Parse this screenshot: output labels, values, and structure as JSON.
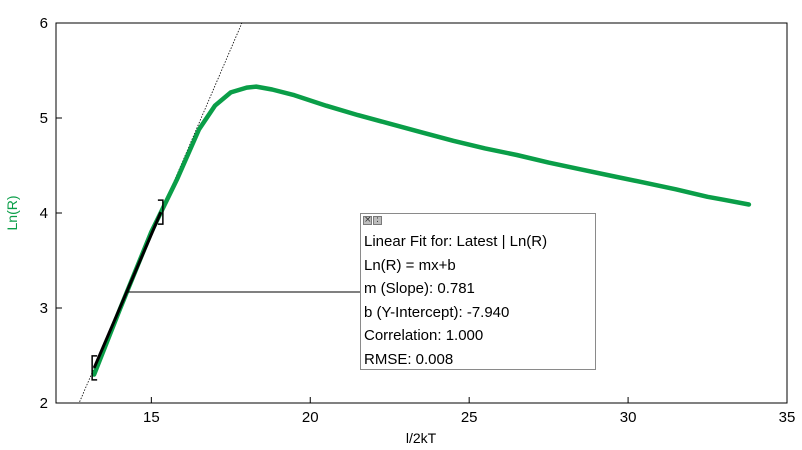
{
  "chart_data": {
    "type": "line",
    "xlabel": "l/2kT",
    "ylabel": "Ln(R)",
    "xlim": [
      12,
      35
    ],
    "ylim": [
      2,
      6
    ],
    "xticks": [
      15,
      20,
      25,
      30,
      35
    ],
    "yticks": [
      2,
      3,
      4,
      5,
      6
    ],
    "grid": false,
    "series": [
      {
        "color": "#0a9e48",
        "x": [
          13.2,
          14.0,
          15.0,
          15.8,
          16.5,
          17.0,
          17.5,
          18.0,
          18.3,
          18.8,
          19.5,
          20.5,
          21.5,
          22.5,
          23.5,
          24.5,
          25.5,
          26.5,
          27.5,
          28.5,
          29.5,
          30.5,
          31.5,
          32.5,
          33.0,
          33.8
        ],
        "y": [
          2.3,
          2.98,
          3.8,
          4.35,
          4.88,
          5.13,
          5.27,
          5.32,
          5.33,
          5.3,
          5.24,
          5.13,
          5.03,
          4.94,
          4.85,
          4.76,
          4.68,
          4.61,
          4.53,
          4.46,
          4.39,
          4.32,
          4.25,
          4.17,
          4.14,
          4.09
        ]
      }
    ],
    "fit": {
      "range_x": [
        13.2,
        15.3
      ],
      "slope": 0.781,
      "intercept": -7.94
    }
  },
  "fit_box": {
    "lines": [
      "Linear Fit for: Latest | Ln(R)",
      "Ln(R) = mx+b",
      "m (Slope): 0.781",
      "b (Y-Intercept): -7.940",
      "Correlation: 1.000",
      "RMSE: 0.008"
    ],
    "close_icon": "close-icon",
    "options_icon": "options-icon"
  }
}
